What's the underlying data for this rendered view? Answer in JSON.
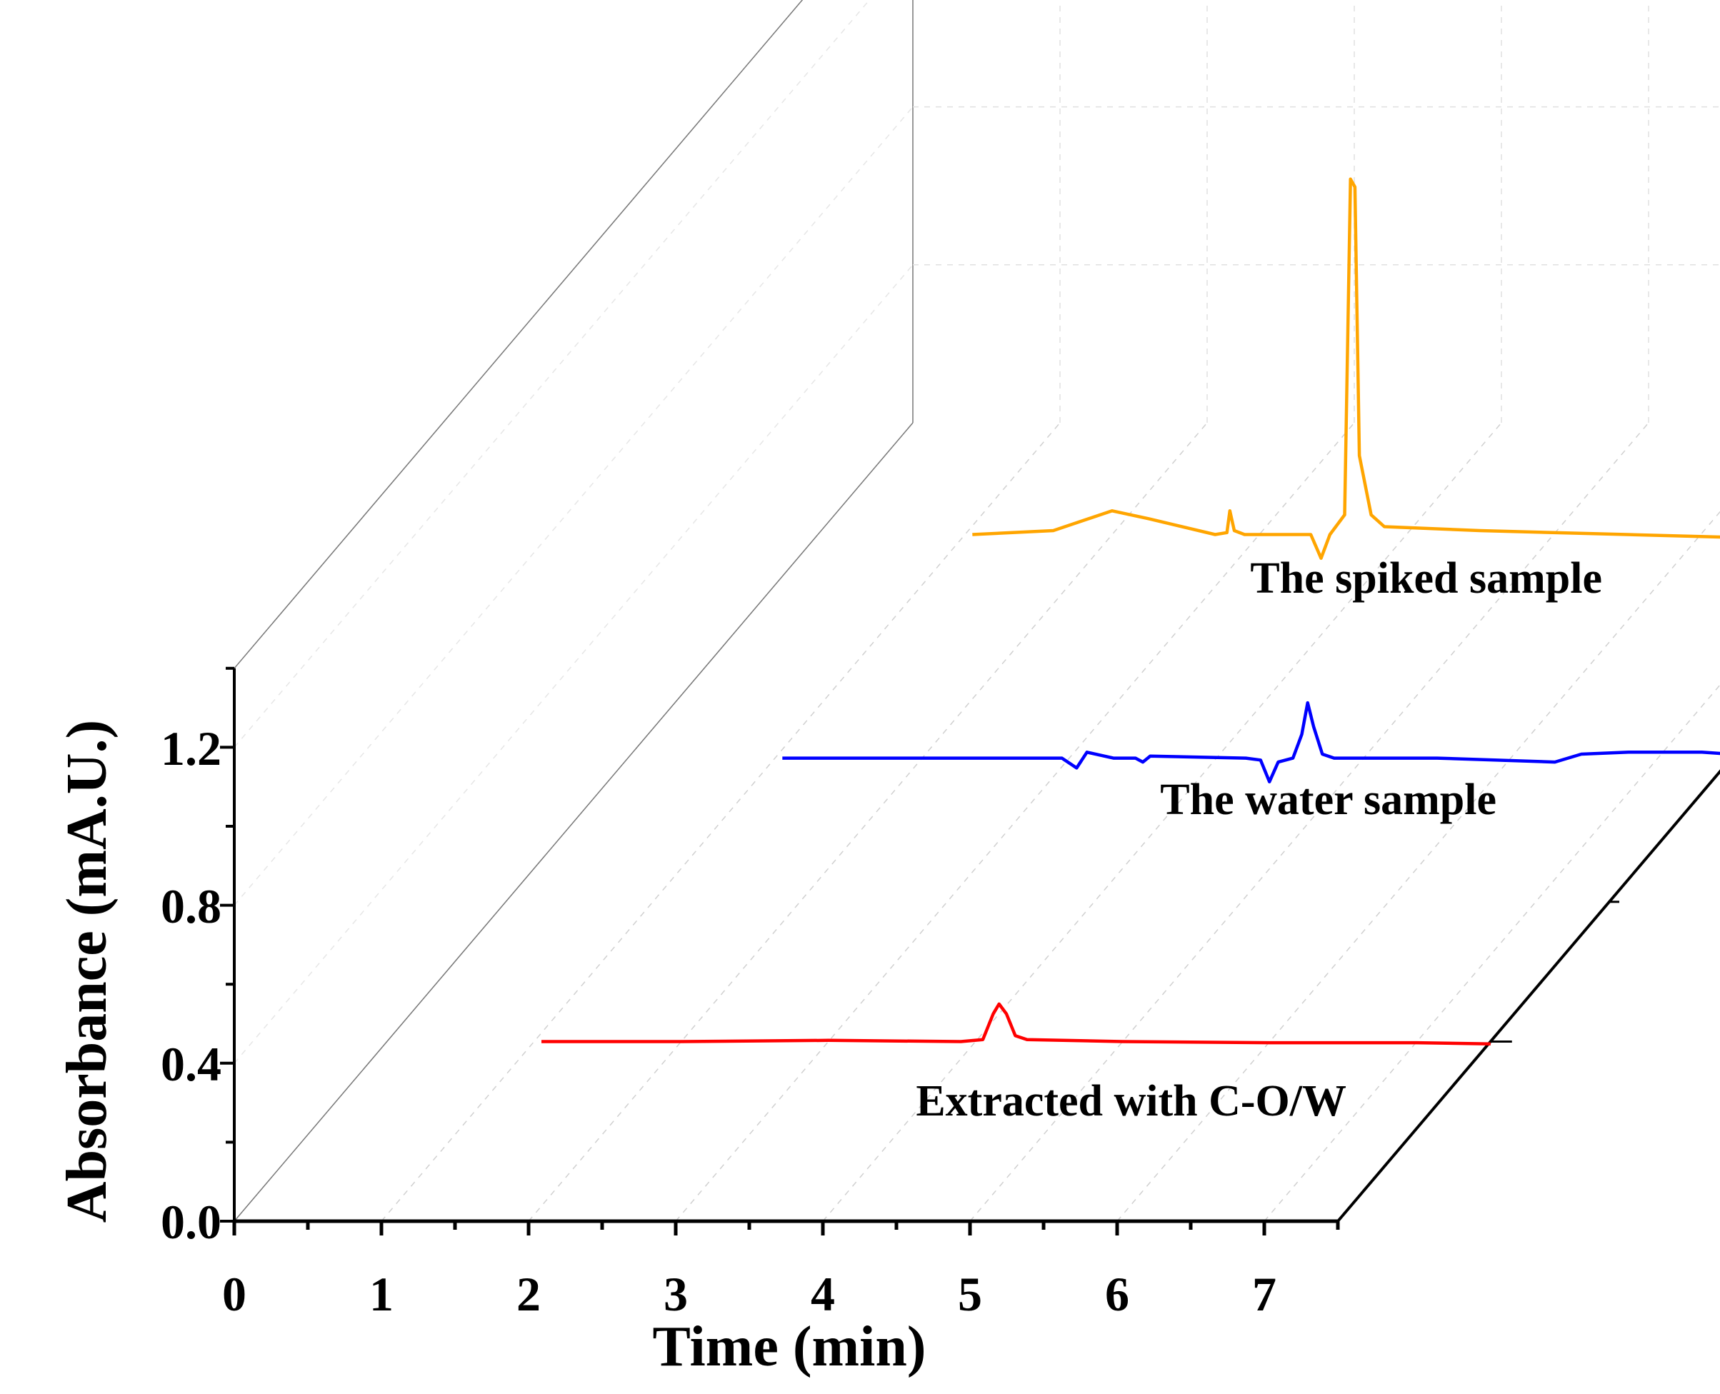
{
  "chart_data": {
    "type": "line",
    "style": "3d-waterfall",
    "title": "",
    "xlabel": "Time (min)",
    "ylabel": "Absorbance (mA.U.)",
    "xlim": [
      0,
      7.5
    ],
    "ylim": [
      0,
      1.4
    ],
    "x_ticks": [
      "0",
      "1",
      "2",
      "3",
      "4",
      "5",
      "6",
      "7"
    ],
    "y_ticks": [
      "0.0",
      "0.4",
      "0.8",
      "1.2"
    ],
    "grid": true,
    "series": [
      {
        "name": "Extracted with C-O/W",
        "color": "#ff0000",
        "baseline": 0.0,
        "x_range": [
          1.05,
          7.5
        ],
        "points": [
          [
            1.05,
            0.0
          ],
          [
            2.0,
            0.0
          ],
          [
            3.0,
            0.003
          ],
          [
            3.9,
            0.0
          ],
          [
            4.05,
            0.005
          ],
          [
            4.12,
            0.07
          ],
          [
            4.16,
            0.095
          ],
          [
            4.21,
            0.07
          ],
          [
            4.27,
            0.015
          ],
          [
            4.35,
            0.005
          ],
          [
            5.0,
            0.0
          ],
          [
            6.0,
            -0.003
          ],
          [
            7.0,
            -0.003
          ],
          [
            7.5,
            -0.006
          ]
        ]
      },
      {
        "name": "The water sample",
        "color": "#0000ff",
        "baseline": 0.0,
        "x_range": [
          1.05,
          7.5
        ],
        "points": [
          [
            1.05,
            0.0
          ],
          [
            2.3,
            0.0
          ],
          [
            2.95,
            0.0
          ],
          [
            3.05,
            -0.025
          ],
          [
            3.12,
            0.015
          ],
          [
            3.3,
            0.0
          ],
          [
            3.45,
            0.0
          ],
          [
            3.5,
            -0.01
          ],
          [
            3.55,
            0.005
          ],
          [
            4.2,
            0.0
          ],
          [
            4.3,
            -0.005
          ],
          [
            4.36,
            -0.06
          ],
          [
            4.42,
            -0.01
          ],
          [
            4.52,
            0.0
          ],
          [
            4.58,
            0.06
          ],
          [
            4.62,
            0.14
          ],
          [
            4.66,
            0.08
          ],
          [
            4.72,
            0.01
          ],
          [
            4.8,
            0.0
          ],
          [
            5.5,
            0.0
          ],
          [
            6.3,
            -0.01
          ],
          [
            6.48,
            0.01
          ],
          [
            6.8,
            0.015
          ],
          [
            7.3,
            0.015
          ],
          [
            7.5,
            0.01
          ]
        ]
      },
      {
        "name": "The spiked sample",
        "color": "#ffa500",
        "baseline": 0.0,
        "x_range": [
          1.05,
          7.5
        ],
        "points": [
          [
            1.05,
            0.0
          ],
          [
            1.6,
            0.01
          ],
          [
            2.0,
            0.06
          ],
          [
            2.25,
            0.04
          ],
          [
            2.7,
            0.0
          ],
          [
            2.78,
            0.005
          ],
          [
            2.8,
            0.06
          ],
          [
            2.83,
            0.01
          ],
          [
            2.9,
            0.0
          ],
          [
            3.35,
            0.0
          ],
          [
            3.42,
            -0.06
          ],
          [
            3.48,
            0.0
          ],
          [
            3.58,
            0.05
          ],
          [
            3.62,
            0.9
          ],
          [
            3.65,
            0.88
          ],
          [
            3.68,
            0.2
          ],
          [
            3.76,
            0.05
          ],
          [
            3.85,
            0.02
          ],
          [
            4.5,
            0.01
          ],
          [
            5.5,
            0.0
          ],
          [
            6.5,
            -0.01
          ],
          [
            7.5,
            -0.02
          ]
        ]
      }
    ]
  }
}
